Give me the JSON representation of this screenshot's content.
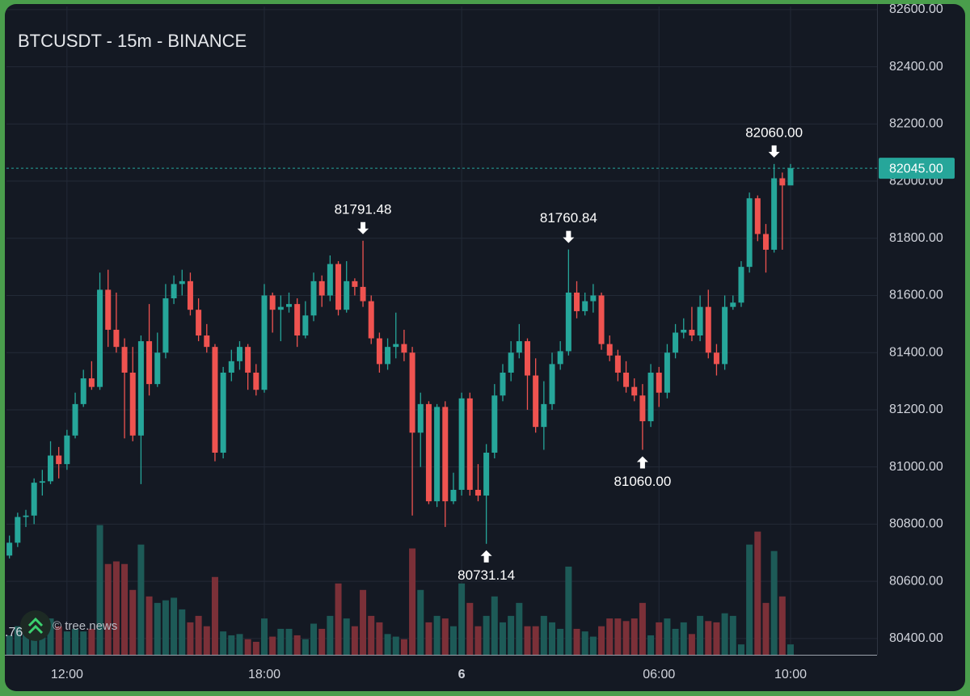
{
  "chart_data": {
    "type": "candlestick",
    "title": "BTCUSDT - 15m - BINANCE",
    "watermark": "© tree.news",
    "clipped_label": ".76",
    "x": [
      10.25,
      10.5,
      10.75,
      11,
      11.25,
      11.5,
      11.75,
      12,
      12.25,
      12.5,
      12.75,
      13,
      13.25,
      13.5,
      13.75,
      14,
      14.25,
      14.5,
      14.75,
      15,
      15.25,
      15.5,
      15.75,
      16,
      16.25,
      16.5,
      16.75,
      17,
      17.25,
      17.5,
      17.75,
      18,
      18.25,
      18.5,
      18.75,
      19,
      19.25,
      19.5,
      19.75,
      20,
      20.25,
      20.5,
      20.75,
      21,
      21.25,
      21.5,
      21.75,
      22,
      22.25,
      22.5,
      22.75,
      23,
      23.25,
      23.5,
      23.75,
      24,
      24.25,
      24.5,
      24.75,
      25,
      25.25,
      25.5,
      25.75,
      26,
      26.25,
      26.5,
      26.75,
      27,
      27.25,
      27.5,
      27.75,
      28,
      28.25,
      28.5,
      28.75,
      29,
      29.25,
      29.5,
      29.75,
      30,
      30.25,
      30.5,
      30.75,
      31,
      31.25,
      31.5,
      31.75,
      32,
      32.25,
      32.5,
      32.75,
      33,
      33.25,
      33.5,
      33.75,
      34
    ],
    "open": [
      80690,
      80735,
      80825,
      80830,
      80945,
      80950,
      81040,
      81010,
      81110,
      81220,
      81310,
      81280,
      81620,
      81480,
      81420,
      81330,
      81110,
      81440,
      81290,
      81400,
      81590,
      81640,
      81650,
      81550,
      81460,
      81420,
      81050,
      81330,
      81370,
      81420,
      81330,
      81270,
      81600,
      81550,
      81560,
      81570,
      81460,
      81530,
      81650,
      81600,
      81710,
      81550,
      81650,
      81630,
      81580,
      81450,
      81360,
      81420,
      81430,
      81400,
      81120,
      81220,
      80880,
      81210,
      80880,
      80920,
      81240,
      80920,
      80900,
      81050,
      81250,
      81330,
      81400,
      81440,
      81320,
      81140,
      81220,
      81360,
      81405,
      81610,
      81545,
      81580,
      81600,
      81430,
      81390,
      81330,
      81280,
      81250,
      81160,
      81330,
      81260,
      81400,
      81470,
      81480,
      81460,
      81560,
      81400,
      81360,
      81560,
      81575,
      81700,
      81940,
      81815,
      81760,
      82010,
      81985
    ],
    "high": [
      80760,
      80840,
      80850,
      80960,
      80990,
      81090,
      81070,
      81130,
      81260,
      81340,
      81370,
      81680,
      81690,
      81610,
      81450,
      81420,
      81460,
      81570,
      81470,
      81640,
      81670,
      81690,
      81680,
      81590,
      81500,
      81430,
      81350,
      81410,
      81440,
      81430,
      81360,
      81640,
      81610,
      81600,
      81610,
      81590,
      81580,
      81680,
      81670,
      81740,
      81720,
      81720,
      81660,
      81791.48,
      81600,
      81470,
      81450,
      81540,
      81480,
      81420,
      81260,
      81230,
      81220,
      81230,
      80980,
      81260,
      81260,
      81010,
      81080,
      81290,
      81360,
      81440,
      81500,
      81450,
      81380,
      81300,
      81400,
      81440,
      81760.84,
      81650,
      81610,
      81640,
      81610,
      81460,
      81410,
      81370,
      81310,
      81290,
      81360,
      81350,
      81430,
      81500,
      81520,
      81560,
      81600,
      81620,
      81430,
      81600,
      81600,
      81720,
      81960,
      81950,
      81850,
      82060,
      82030,
      82060
    ],
    "low": [
      80680,
      80720,
      80790,
      80800,
      80900,
      80940,
      80960,
      80990,
      81100,
      81210,
      81270,
      81270,
      81420,
      81400,
      81100,
      81090,
      80940,
      81250,
      81280,
      81380,
      81570,
      81600,
      81530,
      81440,
      81400,
      81020,
      81030,
      81300,
      81340,
      81270,
      81250,
      81260,
      81470,
      81440,
      81540,
      81420,
      81450,
      81510,
      81560,
      81580,
      81530,
      81540,
      81600,
      81560,
      81430,
      81330,
      81340,
      81380,
      81370,
      80830,
      81000,
      80870,
      80860,
      80790,
      80870,
      80900,
      80900,
      80880,
      80731.14,
      81030,
      81230,
      81300,
      81380,
      81200,
      81120,
      81060,
      81200,
      81340,
      81390,
      81520,
      81530,
      81540,
      81410,
      81370,
      81300,
      81260,
      81230,
      81060,
      81140,
      81210,
      81240,
      81380,
      81450,
      81440,
      81440,
      81380,
      81320,
      81340,
      81550,
      81560,
      81680,
      81790,
      81680,
      81750,
      81760,
      81990
    ],
    "close": [
      80735,
      80825,
      80830,
      80945,
      80950,
      81040,
      81010,
      81110,
      81220,
      81310,
      81280,
      81620,
      81480,
      81420,
      81330,
      81110,
      81440,
      81290,
      81400,
      81590,
      81640,
      81650,
      81550,
      81460,
      81420,
      81050,
      81330,
      81370,
      81420,
      81330,
      81270,
      81600,
      81550,
      81560,
      81570,
      81460,
      81530,
      81650,
      81600,
      81710,
      81550,
      81650,
      81630,
      81580,
      81450,
      81360,
      81420,
      81430,
      81400,
      81120,
      81220,
      80880,
      81210,
      80880,
      80920,
      81240,
      80920,
      80900,
      81050,
      81250,
      81330,
      81400,
      81440,
      81320,
      81140,
      81220,
      81360,
      81405,
      81610,
      81545,
      81580,
      81600,
      81430,
      81390,
      81330,
      81280,
      81250,
      81160,
      81330,
      81260,
      81400,
      81470,
      81480,
      81460,
      81560,
      81400,
      81360,
      81560,
      81575,
      81700,
      81940,
      81815,
      81760,
      82010,
      81985,
      82045
    ],
    "volume": [
      15,
      22,
      18,
      25,
      20,
      28,
      22,
      18,
      20,
      18,
      20,
      100,
      70,
      72,
      70,
      50,
      85,
      45,
      40,
      42,
      44,
      35,
      25,
      30,
      22,
      60,
      18,
      15,
      16,
      12,
      10,
      28,
      14,
      20,
      20,
      15,
      12,
      24,
      20,
      30,
      55,
      28,
      22,
      50,
      30,
      25,
      16,
      14,
      12,
      82,
      50,
      25,
      30,
      28,
      22,
      55,
      40,
      22,
      30,
      45,
      25,
      30,
      40,
      22,
      22,
      30,
      25,
      20,
      68,
      20,
      18,
      14,
      22,
      28,
      28,
      26,
      28,
      40,
      15,
      25,
      28,
      20,
      25,
      16,
      30,
      26,
      25,
      32,
      30,
      8,
      85,
      95,
      40,
      80,
      45,
      8
    ],
    "up_color": "#26a69a",
    "down_color": "#ef5350",
    "volume_up_color": "#1d5a57",
    "volume_down_color": "#7b3038",
    "xlim": [
      10.16,
      36.63
    ],
    "xticks": [
      {
        "value": 12,
        "label": "12:00"
      },
      {
        "value": 18,
        "label": "18:00"
      },
      {
        "value": 24,
        "label": "6",
        "bold": true
      },
      {
        "value": 30,
        "label": "06:00"
      },
      {
        "value": 34,
        "label": "10:00"
      }
    ],
    "ylim": [
      80343,
      82611
    ],
    "yticks": [
      {
        "value": 80400,
        "label": "80400.00"
      },
      {
        "value": 80600,
        "label": "80600.00"
      },
      {
        "value": 80800,
        "label": "80800.00"
      },
      {
        "value": 81000,
        "label": "81000.00"
      },
      {
        "value": 81200,
        "label": "81200.00"
      },
      {
        "value": 81400,
        "label": "81400.00"
      },
      {
        "value": 81600,
        "label": "81600.00"
      },
      {
        "value": 81800,
        "label": "81800.00"
      },
      {
        "value": 82000,
        "label": "82000.00"
      },
      {
        "value": 82200,
        "label": "82200.00"
      },
      {
        "value": 82400,
        "label": "82400.00"
      },
      {
        "value": 82600,
        "label": "82600.00"
      }
    ],
    "y2lim": [
      0,
      500
    ],
    "grid": true,
    "last_price": {
      "value": 82045,
      "label": "82045.00",
      "color": "#26a69a"
    },
    "annotations": [
      {
        "x": 21,
        "value": 81791.48,
        "label": "81791.48",
        "position": "above"
      },
      {
        "x": 27.25,
        "value": 81760.84,
        "label": "81760.84",
        "position": "above"
      },
      {
        "x": 33.5,
        "value": 82060,
        "label": "82060.00",
        "position": "above"
      },
      {
        "x": 24.75,
        "value": 80731.14,
        "label": "80731.14",
        "position": "below"
      },
      {
        "x": 29.5,
        "value": 81060,
        "label": "81060.00",
        "position": "below"
      }
    ]
  }
}
